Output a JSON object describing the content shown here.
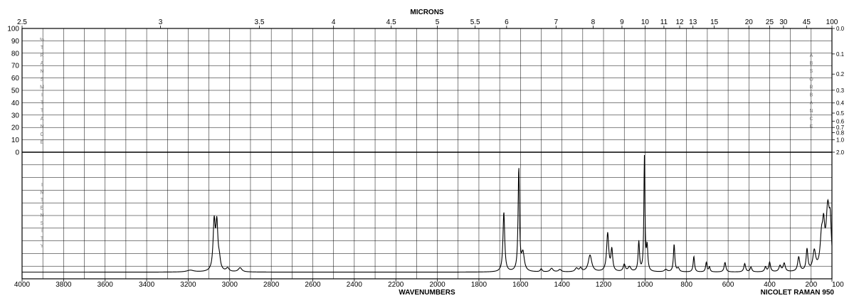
{
  "chart_data": {
    "type": "line",
    "top_title": "MICRONS",
    "xlabel": "WAVENUMBERS",
    "instrument": "NICOLET RAMAN 950",
    "transmittance_label": "%TRANSMITTANCE",
    "absorbance_label": "ABSORBANCE",
    "intensity_label": "INTENSITY",
    "xlim": [
      4000,
      100
    ],
    "x_ticks": [
      "4000",
      "3800",
      "3600",
      "3400",
      "3200",
      "3000",
      "2800",
      "2600",
      "2400",
      "2200",
      "2000",
      "1800",
      "1600",
      "1400",
      "1200",
      "1000",
      "800",
      "600",
      "400",
      "200",
      "100"
    ],
    "transmittance_ticks": [
      "100",
      "90",
      "80",
      "70",
      "60",
      "50",
      "40",
      "30",
      "20",
      "10",
      "0"
    ],
    "micron_ticks": [
      {
        "label": "2.5",
        "value": 2.5
      },
      {
        "label": "3",
        "value": 3
      },
      {
        "label": "3.5",
        "value": 3.5
      },
      {
        "label": "4",
        "value": 4
      },
      {
        "label": "4.5",
        "value": 4.5
      },
      {
        "label": "5",
        "value": 5
      },
      {
        "label": "5.5",
        "value": 5.5
      },
      {
        "label": "6",
        "value": 6
      },
      {
        "label": "7",
        "value": 7
      },
      {
        "label": "8",
        "value": 8
      },
      {
        "label": "9",
        "value": 9
      },
      {
        "label": "10",
        "value": 10
      },
      {
        "label": "11",
        "value": 11
      },
      {
        "label": "12",
        "value": 12
      },
      {
        "label": "13",
        "value": 13
      },
      {
        "label": "15",
        "value": 15
      },
      {
        "label": "20",
        "value": 20
      },
      {
        "label": "25",
        "value": 25
      },
      {
        "label": "30",
        "value": 30
      },
      {
        "label": "45",
        "value": 45
      },
      {
        "label": "100",
        "value": 100
      }
    ],
    "absorbance_ticks": [
      {
        "label": "0.0",
        "t": 100
      },
      {
        "label": "0.1",
        "t": 79.4
      },
      {
        "label": "0.2",
        "t": 63.1
      },
      {
        "label": "0.3",
        "t": 50.1
      },
      {
        "label": "0.4",
        "t": 39.8
      },
      {
        "label": "0.5",
        "t": 31.6
      },
      {
        "label": "0.6",
        "t": 25.1
      },
      {
        "label": "0.7",
        "t": 20
      },
      {
        "label": "0.8",
        "t": 15.8
      },
      {
        "label": "1.0",
        "t": 10
      },
      {
        "label": "2.0",
        "t": 0
      }
    ],
    "series": [
      {
        "baseline": 2,
        "peaks": [
          {
            "x": 3190,
            "y": 1.5,
            "w": 20
          },
          {
            "x": 3075,
            "y": 40,
            "w": 6
          },
          {
            "x": 3062,
            "y": 38,
            "w": 6
          },
          {
            "x": 3050,
            "y": 8,
            "w": 6
          },
          {
            "x": 3010,
            "y": 3,
            "w": 8
          },
          {
            "x": 2950,
            "y": 3.5,
            "w": 10
          },
          {
            "x": 1680,
            "y": 50,
            "w": 5
          },
          {
            "x": 1608,
            "y": 86,
            "w": 4
          },
          {
            "x": 1588,
            "y": 15,
            "w": 8
          },
          {
            "x": 1500,
            "y": 2.5,
            "w": 5
          },
          {
            "x": 1450,
            "y": 3,
            "w": 8
          },
          {
            "x": 1410,
            "y": 2,
            "w": 8
          },
          {
            "x": 1330,
            "y": 3,
            "w": 8
          },
          {
            "x": 1310,
            "y": 3,
            "w": 6
          },
          {
            "x": 1265,
            "y": 14,
            "w": 10
          },
          {
            "x": 1180,
            "y": 32,
            "w": 6
          },
          {
            "x": 1160,
            "y": 18,
            "w": 5
          },
          {
            "x": 1100,
            "y": 6,
            "w": 6
          },
          {
            "x": 1075,
            "y": 4,
            "w": 8
          },
          {
            "x": 1030,
            "y": 25,
            "w": 4
          },
          {
            "x": 1003,
            "y": 98,
            "w": 3
          },
          {
            "x": 990,
            "y": 20,
            "w": 4
          },
          {
            "x": 900,
            "y": 2,
            "w": 8
          },
          {
            "x": 860,
            "y": 23,
            "w": 4
          },
          {
            "x": 840,
            "y": 3,
            "w": 6
          },
          {
            "x": 765,
            "y": 13,
            "w": 4
          },
          {
            "x": 705,
            "y": 8,
            "w": 4
          },
          {
            "x": 690,
            "y": 4,
            "w": 4
          },
          {
            "x": 615,
            "y": 8,
            "w": 5
          },
          {
            "x": 520,
            "y": 7,
            "w": 5
          },
          {
            "x": 490,
            "y": 4,
            "w": 5
          },
          {
            "x": 420,
            "y": 4,
            "w": 5
          },
          {
            "x": 400,
            "y": 8,
            "w": 5
          },
          {
            "x": 350,
            "y": 5,
            "w": 6
          },
          {
            "x": 330,
            "y": 7,
            "w": 6
          },
          {
            "x": 260,
            "y": 12,
            "w": 6
          },
          {
            "x": 220,
            "y": 18,
            "w": 5
          },
          {
            "x": 185,
            "y": 16,
            "w": 8
          },
          {
            "x": 150,
            "y": 25,
            "w": 8
          },
          {
            "x": 140,
            "y": 28,
            "w": 6
          },
          {
            "x": 120,
            "y": 50,
            "w": 10
          },
          {
            "x": 108,
            "y": 30,
            "w": 6
          }
        ]
      }
    ]
  }
}
